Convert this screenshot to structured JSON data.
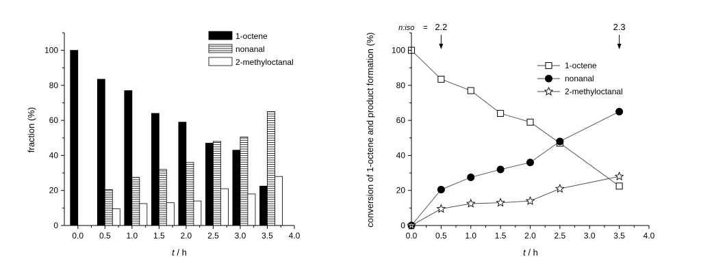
{
  "chart_data": [
    {
      "type": "bar",
      "xlabel_italic": "t",
      "xlabel_unit": " / h",
      "ylabel": "fraction (%)",
      "ylim": [
        0,
        110
      ],
      "xlim": [
        -0.25,
        4.0
      ],
      "xticks": [
        "0.0",
        "0.5",
        "1.0",
        "1.5",
        "2.0",
        "2.5",
        "3.0",
        "3.5",
        "4.0"
      ],
      "yticks": [
        "0",
        "20",
        "40",
        "60",
        "80",
        "100"
      ],
      "legend_position": "top-right",
      "categories": [
        0.0,
        0.5,
        1.0,
        1.5,
        2.0,
        2.5,
        3.0,
        3.5
      ],
      "series": [
        {
          "name": "1-octene",
          "fill": "solid",
          "values": [
            100,
            83.5,
            77,
            64,
            59,
            47,
            43,
            22.5
          ]
        },
        {
          "name": "nonanal",
          "fill": "hlines",
          "values": [
            0,
            20.5,
            27.5,
            32,
            36,
            48,
            50.5,
            65
          ]
        },
        {
          "name": "2-methyloctanal",
          "fill": "empty",
          "values": [
            0,
            9.5,
            12.5,
            13,
            14,
            21,
            18,
            28
          ]
        }
      ]
    },
    {
      "type": "line",
      "xlabel_italic": "t",
      "xlabel_unit": " / h",
      "ylabel": "conversion of 1-octene and product formation (%)",
      "xlim": [
        0,
        4.0
      ],
      "ylim": [
        0,
        110
      ],
      "xticks": [
        "0.0",
        "0.5",
        "1.0",
        "1.5",
        "2.0",
        "2.5",
        "3.0",
        "3.5",
        "4.0"
      ],
      "yticks": [
        "0",
        "20",
        "40",
        "60",
        "80",
        "100"
      ],
      "legend_position": "top-right",
      "series": [
        {
          "name": "1-octene",
          "marker": "open-square",
          "x": [
            0,
            0.5,
            1.0,
            1.5,
            2.0,
            2.5,
            3.5
          ],
          "y": [
            100,
            83.5,
            77,
            64,
            59,
            47,
            22.5
          ]
        },
        {
          "name": "nonanal",
          "marker": "filled-circle",
          "x": [
            0,
            0.5,
            1.0,
            1.5,
            2.0,
            2.5,
            3.5
          ],
          "y": [
            0,
            20.5,
            27.5,
            32,
            36,
            48,
            65
          ]
        },
        {
          "name": "2-methyloctanal",
          "marker": "open-star",
          "x": [
            0,
            0.5,
            1.0,
            1.5,
            2.0,
            2.5,
            3.5
          ],
          "y": [
            0,
            9.5,
            12.5,
            13,
            14,
            21,
            28
          ]
        }
      ],
      "annotations": [
        {
          "prefix": "n:iso",
          "equals": "=",
          "text": "2.2",
          "x": 0.5
        },
        {
          "text": "2.3",
          "x": 3.5
        }
      ]
    }
  ]
}
